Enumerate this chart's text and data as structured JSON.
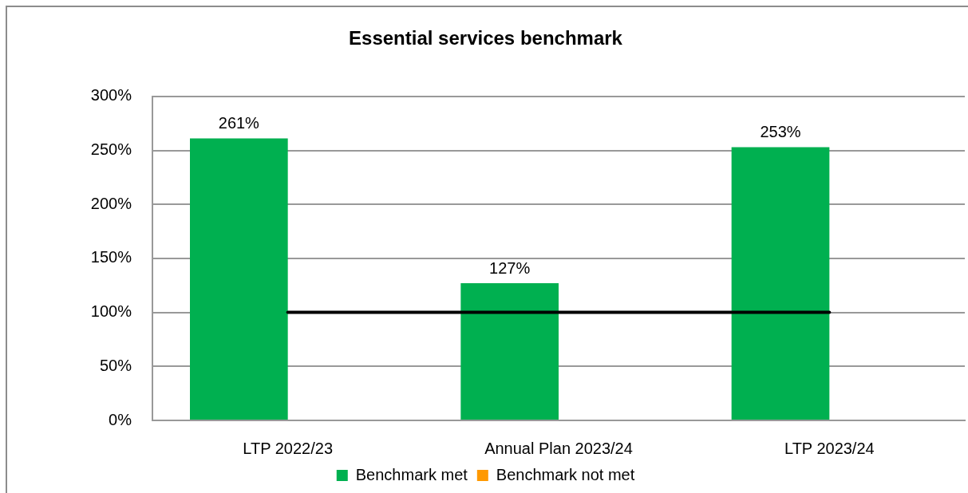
{
  "chart_data": {
    "type": "bar",
    "title": "Essential services benchmark",
    "categories": [
      "LTP 2022/23",
      "Annual Plan 2023/24",
      "LTP 2023/24"
    ],
    "series": [
      {
        "name": "Benchmark met",
        "color": "#00b050",
        "values": [
          261,
          127,
          253
        ],
        "value_labels": [
          "261%",
          "127%",
          "253%"
        ]
      },
      {
        "name": "Benchmark not met",
        "color": "#ff9900",
        "values": [
          null,
          null,
          null
        ]
      },
      {
        "type": "line",
        "color": "#000000",
        "values": [
          100,
          100,
          100
        ]
      }
    ],
    "ylim": [
      0,
      300
    ],
    "yticks": [
      {
        "value": 0,
        "label": "0%"
      },
      {
        "value": 50,
        "label": "50%"
      },
      {
        "value": 100,
        "label": "100%"
      },
      {
        "value": 150,
        "label": "150%"
      },
      {
        "value": 200,
        "label": "200%"
      },
      {
        "value": 250,
        "label": "250%"
      },
      {
        "value": 300,
        "label": "300%"
      }
    ],
    "grid": "y",
    "legend": "bottom",
    "marker": "none"
  }
}
